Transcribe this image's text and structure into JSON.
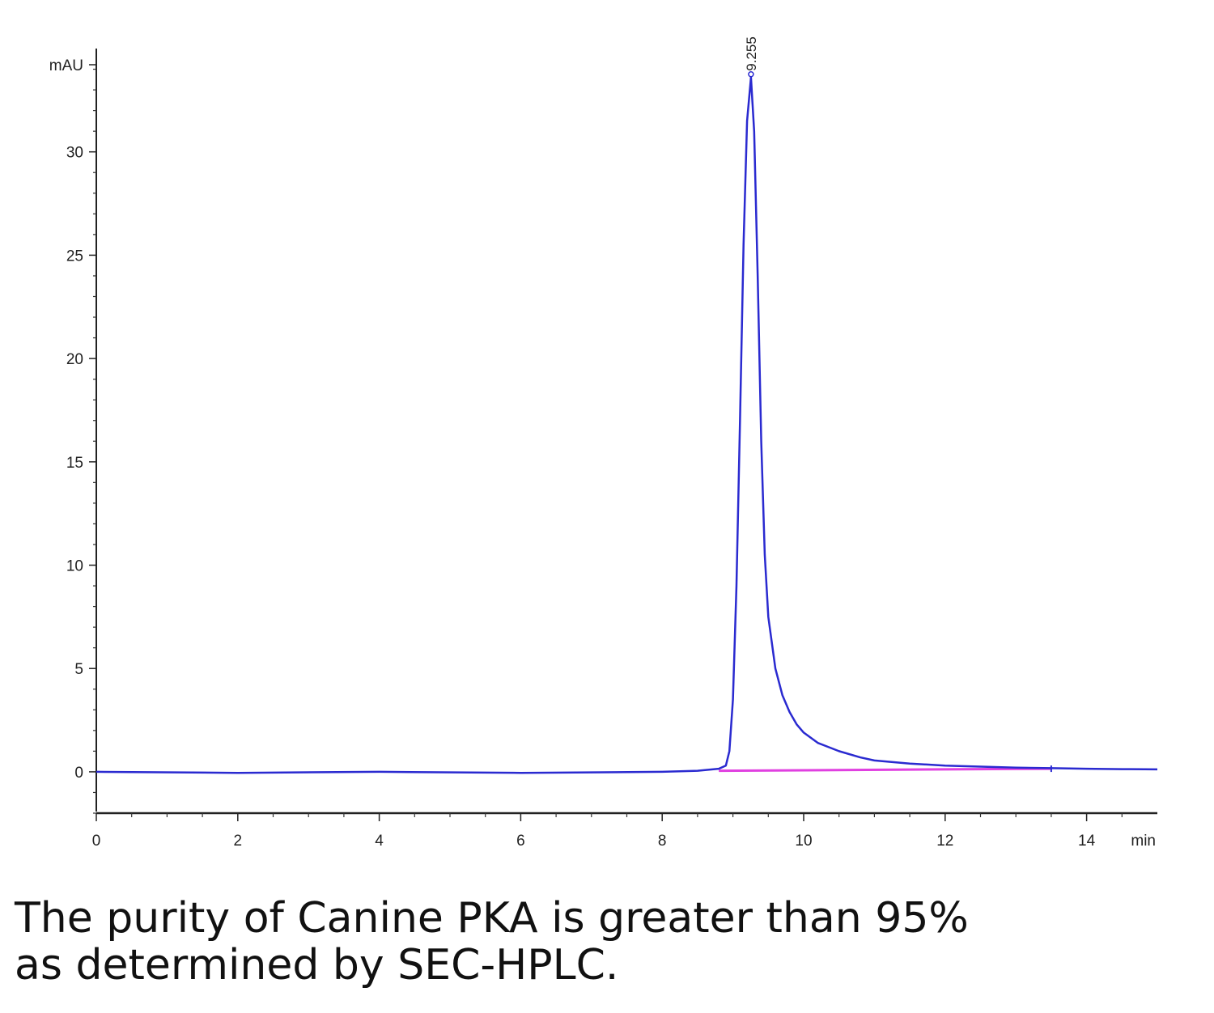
{
  "chart_data": {
    "type": "line",
    "ylabel": "mAU",
    "xlabel": "min",
    "xlim": [
      0,
      15
    ],
    "ylim": [
      -2,
      35
    ],
    "x_ticks": [
      0,
      2,
      4,
      6,
      8,
      10,
      12,
      14
    ],
    "y_ticks": [
      0,
      5,
      10,
      15,
      20,
      25,
      30
    ],
    "grid": false,
    "series": [
      {
        "color": "#2a2ad0",
        "x": [
          0,
          2,
          4,
          6,
          8,
          8.5,
          8.8,
          8.9,
          8.95,
          9.0,
          9.05,
          9.1,
          9.15,
          9.2,
          9.255,
          9.3,
          9.35,
          9.4,
          9.45,
          9.5,
          9.6,
          9.7,
          9.8,
          9.9,
          10.0,
          10.2,
          10.5,
          10.8,
          11.0,
          11.5,
          12.0,
          12.5,
          13.0,
          13.5,
          14.0,
          14.5,
          15.0
        ],
        "y": [
          0,
          -0.05,
          0,
          -0.05,
          0,
          0.05,
          0.15,
          0.3,
          1.0,
          3.5,
          9.0,
          17.0,
          25.5,
          31.5,
          33.6,
          31.0,
          24.0,
          16.0,
          10.5,
          7.5,
          5.0,
          3.7,
          2.9,
          2.3,
          1.9,
          1.4,
          1.0,
          0.7,
          0.55,
          0.4,
          0.3,
          0.25,
          0.2,
          0.18,
          0.15,
          0.13,
          0.12
        ]
      },
      {
        "color": "#e040e0",
        "x": [
          8.8,
          13.5
        ],
        "y": [
          0.05,
          0.15
        ]
      }
    ],
    "peak_label": "9.255"
  },
  "caption": {
    "line1": "The purity of Canine PKA is greater than 95%",
    "line2": "as determined by SEC-HPLC."
  }
}
